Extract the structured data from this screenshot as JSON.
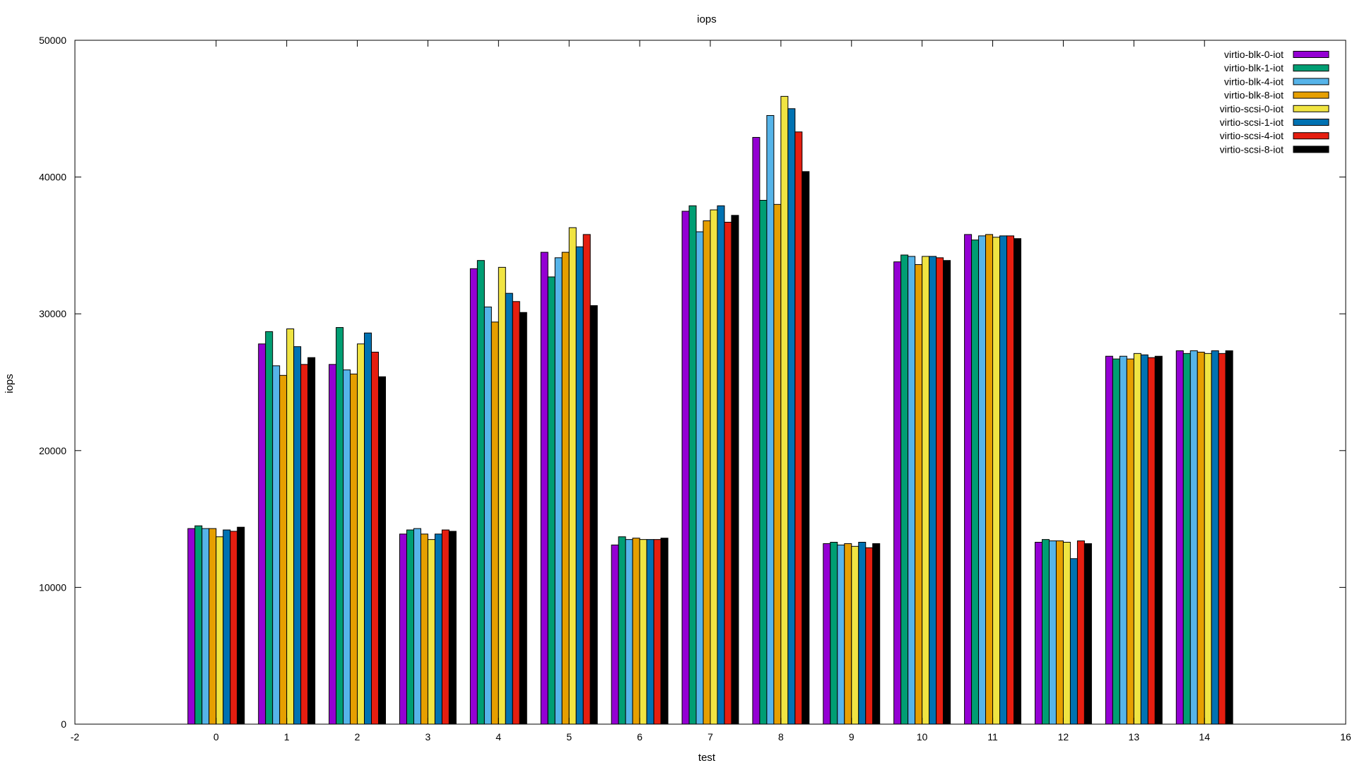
{
  "chart_data": {
    "type": "bar",
    "title": "iops",
    "xlabel": "test",
    "ylabel": "iops",
    "xlim": [
      -2,
      16
    ],
    "ylim": [
      0,
      50000
    ],
    "xticks": [
      "-2",
      "0",
      "1",
      "2",
      "3",
      "4",
      "5",
      "6",
      "7",
      "8",
      "9",
      "10",
      "11",
      "12",
      "13",
      "14",
      "16"
    ],
    "yticks": [
      "0",
      "10000",
      "20000",
      "30000",
      "40000",
      "50000"
    ],
    "grid": false,
    "legend_position": "top-right",
    "categories": [
      "0",
      "1",
      "2",
      "3",
      "4",
      "5",
      "6",
      "7",
      "8",
      "9",
      "10",
      "11",
      "12",
      "13",
      "14"
    ],
    "series": [
      {
        "name": "virtio-blk-0-iot",
        "color": "#9400d3",
        "values": [
          14300,
          27800,
          26300,
          13900,
          33300,
          34500,
          13100,
          37500,
          42900,
          13200,
          33800,
          35800,
          13300,
          26900,
          27300
        ]
      },
      {
        "name": "virtio-blk-1-iot",
        "color": "#009e73",
        "values": [
          14500,
          28700,
          29000,
          14200,
          33900,
          32700,
          13700,
          37900,
          38300,
          13300,
          34300,
          35400,
          13500,
          26700,
          27100
        ]
      },
      {
        "name": "virtio-blk-4-iot",
        "color": "#56b4e9",
        "values": [
          14300,
          26200,
          25900,
          14300,
          30500,
          34100,
          13500,
          36000,
          44500,
          13100,
          34200,
          35700,
          13400,
          26900,
          27300
        ]
      },
      {
        "name": "virtio-blk-8-iot",
        "color": "#e69f00",
        "values": [
          14300,
          25500,
          25600,
          13900,
          29400,
          34500,
          13600,
          36800,
          38000,
          13200,
          33600,
          35800,
          13400,
          26700,
          27200
        ]
      },
      {
        "name": "virtio-scsi-0-iot",
        "color": "#f0e442",
        "values": [
          13700,
          28900,
          27800,
          13500,
          33400,
          36300,
          13500,
          37600,
          45900,
          13000,
          34200,
          35600,
          13300,
          27100,
          27100
        ]
      },
      {
        "name": "virtio-scsi-1-iot",
        "color": "#0072b2",
        "values": [
          14200,
          27600,
          28600,
          13900,
          31500,
          34900,
          13500,
          37900,
          45000,
          13300,
          34200,
          35700,
          12100,
          27000,
          27300
        ]
      },
      {
        "name": "virtio-scsi-4-iot",
        "color": "#e51e10",
        "values": [
          14100,
          26300,
          27200,
          14200,
          30900,
          35800,
          13500,
          36700,
          43300,
          12900,
          34100,
          35700,
          13400,
          26800,
          27100
        ]
      },
      {
        "name": "virtio-scsi-8-iot",
        "color": "#000000",
        "values": [
          14400,
          26800,
          25400,
          14100,
          30100,
          30600,
          13600,
          37200,
          40400,
          13200,
          33900,
          35500,
          13200,
          26900,
          27300
        ]
      }
    ]
  }
}
